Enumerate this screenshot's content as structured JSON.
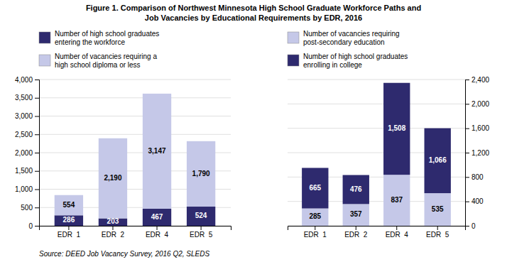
{
  "chart_data": [
    {
      "type": "bar",
      "stacked": true,
      "title": "Figure 1. Comparison of Northwest Minnesota High School Graduate Workforce Paths and\nJob Vacancies by Educational Requirements by EDR, 2016",
      "annotations": [
        "Source: DEED Job Vacancy Survey, 2016 Q2, SLEDS"
      ],
      "categories": [
        "EDR  1",
        "EDR  2",
        "EDR  4",
        "EDR  5"
      ],
      "series": [
        {
          "name": "Number of high school graduates\nentering the workforce",
          "color": "#2e2a6e",
          "values": [
            286,
            203,
            467,
            524
          ]
        },
        {
          "name": "Number of vacancies requiring a\nhigh school diploma or less",
          "color": "#c5c8e8",
          "values": [
            554,
            2190,
            3147,
            1790
          ],
          "value_labels": [
            "554",
            "2,190",
            "3,147",
            "1,790"
          ]
        }
      ],
      "ylim": [
        0,
        4000
      ],
      "yticks": [
        0,
        500,
        {
          "value": 1000,
          "label": "1,000"
        },
        {
          "value": 1500,
          "label": "1,500"
        },
        {
          "value": 2000,
          "label": "2,000"
        },
        {
          "value": 2500,
          "label": "2,500"
        },
        {
          "value": 3000,
          "label": "3,000"
        },
        {
          "value": 3500,
          "label": "3,500"
        },
        {
          "value": 4000,
          "label": "4,000"
        }
      ],
      "grid": true,
      "data_labels": true,
      "legend": "top-left"
    },
    {
      "type": "bar",
      "stacked": true,
      "categories": [
        "EDR  1",
        "EDR  2",
        "EDR  4",
        "EDR  5"
      ],
      "series": [
        {
          "name": "Number of vacancies requiring\npost-secondary education",
          "color": "#c5c8e8",
          "values": [
            285,
            357,
            837,
            535
          ]
        },
        {
          "name": "Number of high school graduates\nenrolling in college",
          "color": "#2e2a6e",
          "values": [
            665,
            476,
            1508,
            1066
          ],
          "value_labels": [
            "665",
            "476",
            "1,508",
            "1,066"
          ]
        }
      ],
      "ylim": [
        0,
        2400
      ],
      "yticks": [
        0,
        400,
        800,
        {
          "value": 1200,
          "label": "1,200"
        },
        {
          "value": 1600,
          "label": "1,600"
        },
        {
          "value": 2000,
          "label": "2,000"
        },
        {
          "value": 2400,
          "label": "2,400"
        }
      ],
      "grid": true,
      "data_labels": true,
      "legend": "top-left"
    }
  ]
}
